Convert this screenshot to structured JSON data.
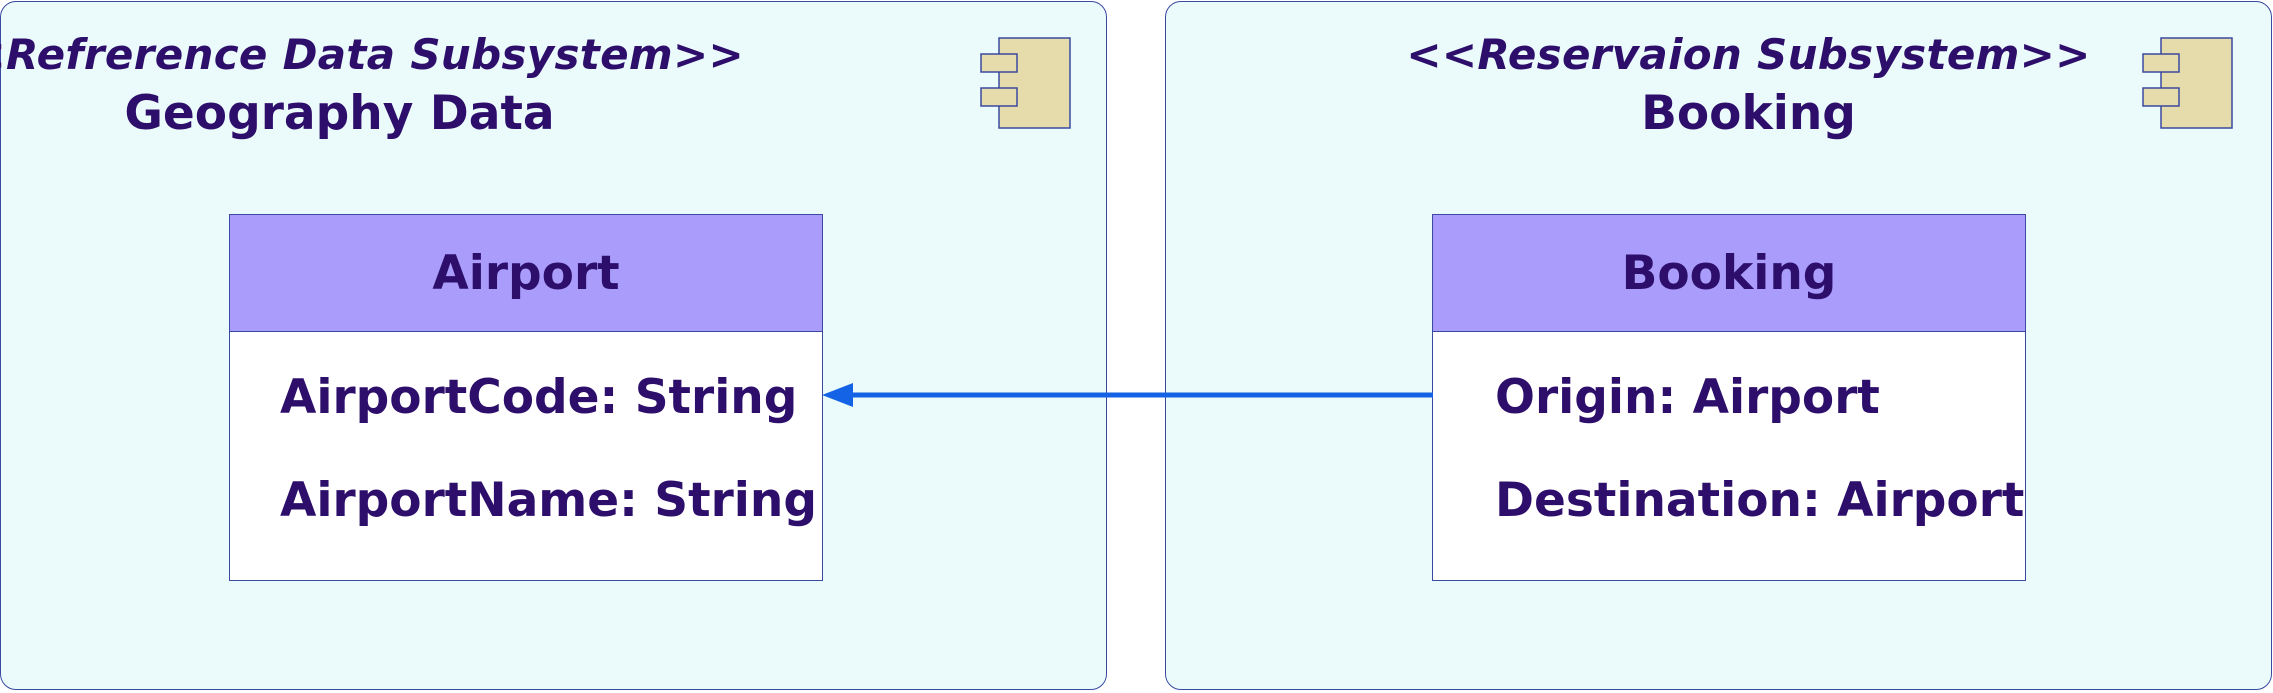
{
  "subsystems": [
    {
      "stereotype": "<<Refrerence Data Subsystem>>",
      "name": "Geography Data",
      "class": {
        "name": "Airport",
        "attributes": [
          "AirportCode: String",
          "AirportName: String"
        ]
      }
    },
    {
      "stereotype": "<<Reservaion Subsystem>>",
      "name": "Booking",
      "class": {
        "name": "Booking",
        "attributes": [
          "Origin: Airport",
          "Destination: Airport"
        ]
      }
    }
  ],
  "colors": {
    "subsystem_fill": "#ebfbfb",
    "border": "#3a4aa0",
    "class_header_fill": "#a99cfb",
    "text": "#2d0e6b",
    "component_icon_fill": "#e6dbab",
    "arrow": "#1463e6"
  },
  "icons": {
    "component": "component-icon"
  }
}
